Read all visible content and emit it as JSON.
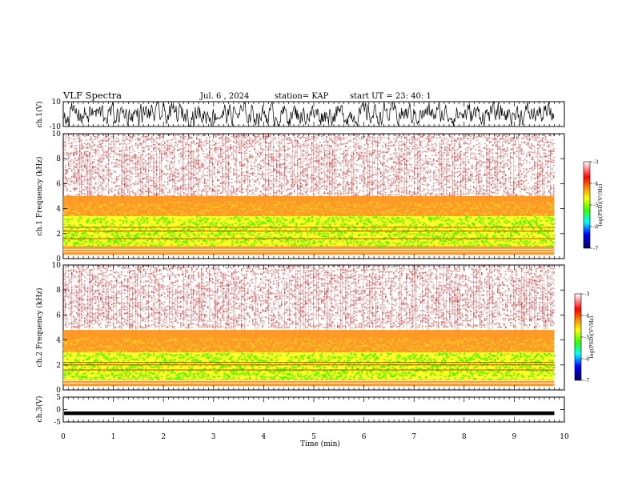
{
  "header": {
    "title": "VLF Spectra",
    "date": "Jul. 6 , 2024",
    "station": "station= KAP",
    "start_ut": "start UT = 23: 40: 1"
  },
  "chart_data": [
    {
      "type": "line",
      "panel": "ch1-waveform",
      "ylabel": "ch.1(V)",
      "ylim": [
        -10,
        10
      ],
      "y_ticks": [
        "10",
        "-10"
      ],
      "xlim": [
        0,
        10
      ],
      "note": "Dense noisy voltage trace, amplitude roughly between -9 and +9 V, ending near 9.8 min"
    },
    {
      "type": "heatmap",
      "panel": "ch1-spectrogram",
      "ylabel": "ch.1 Frequency (kHz)",
      "ylim": [
        0,
        10
      ],
      "y_ticks": [
        "0",
        "2",
        "4",
        "6",
        "8",
        "10"
      ],
      "xlim": [
        0,
        10
      ],
      "data_end_min": 9.8,
      "bands": [
        {
          "freq_khz": [
            0.3,
            1.0
          ],
          "level": "red/orange"
        },
        {
          "freq_khz": [
            1.0,
            3.4
          ],
          "level": "yellow-green (peak)"
        },
        {
          "freq_khz": [
            3.4,
            5.0
          ],
          "level": "orange/red"
        },
        {
          "freq_khz": [
            5.0,
            10.0
          ],
          "level": "sparse red"
        }
      ],
      "lines_khz": [
        2.2,
        2.5,
        1.6
      ],
      "colorbar": {
        "label": "log(PSD)(V²/Hz)",
        "ticks": [
          "-3",
          "-4",
          "-5",
          "-6",
          "-7"
        ],
        "range": [
          -7,
          -3
        ]
      }
    },
    {
      "type": "heatmap",
      "panel": "ch2-spectrogram",
      "ylabel": "ch.2 Frequency (kHz)",
      "ylim": [
        0,
        10
      ],
      "y_ticks": [
        "0",
        "2",
        "4",
        "6",
        "8",
        "10"
      ],
      "xlim": [
        0,
        10
      ],
      "data_end_min": 9.8,
      "bands": [
        {
          "freq_khz": [
            0.3,
            0.8
          ],
          "level": "red/orange"
        },
        {
          "freq_khz": [
            0.8,
            3.0
          ],
          "level": "green-yellow (peak)"
        },
        {
          "freq_khz": [
            3.0,
            4.8
          ],
          "level": "orange/red"
        },
        {
          "freq_khz": [
            4.8,
            10.0
          ],
          "level": "sparse red"
        }
      ],
      "lines_khz": [
        2.0,
        2.2,
        1.6
      ],
      "colorbar": {
        "label": "log(PSD)(V²/Hz)",
        "ticks": [
          "-3",
          "-4",
          "-5",
          "-6",
          "-7"
        ],
        "range": [
          -7,
          -3
        ]
      }
    },
    {
      "type": "line",
      "panel": "ch3-waveform",
      "ylabel": "ch.3(V)",
      "ylim": [
        -5,
        5
      ],
      "y_ticks": [
        "5",
        "0",
        "-5"
      ],
      "xlim": [
        0,
        10
      ],
      "note": "Flat thick trace around -1.5 V, ending near 9.8 min"
    }
  ],
  "x_axis": {
    "label": "Time (min)",
    "ticks": [
      "0",
      "1",
      "2",
      "3",
      "4",
      "5",
      "6",
      "7",
      "8",
      "9",
      "10"
    ]
  },
  "colors": {
    "red": "#ff0000",
    "orange": "#ff8800",
    "yellow": "#ffff00",
    "green": "#33ff00",
    "cyan": "#00ffff",
    "blue": "#0000ff",
    "navy": "#000066"
  }
}
